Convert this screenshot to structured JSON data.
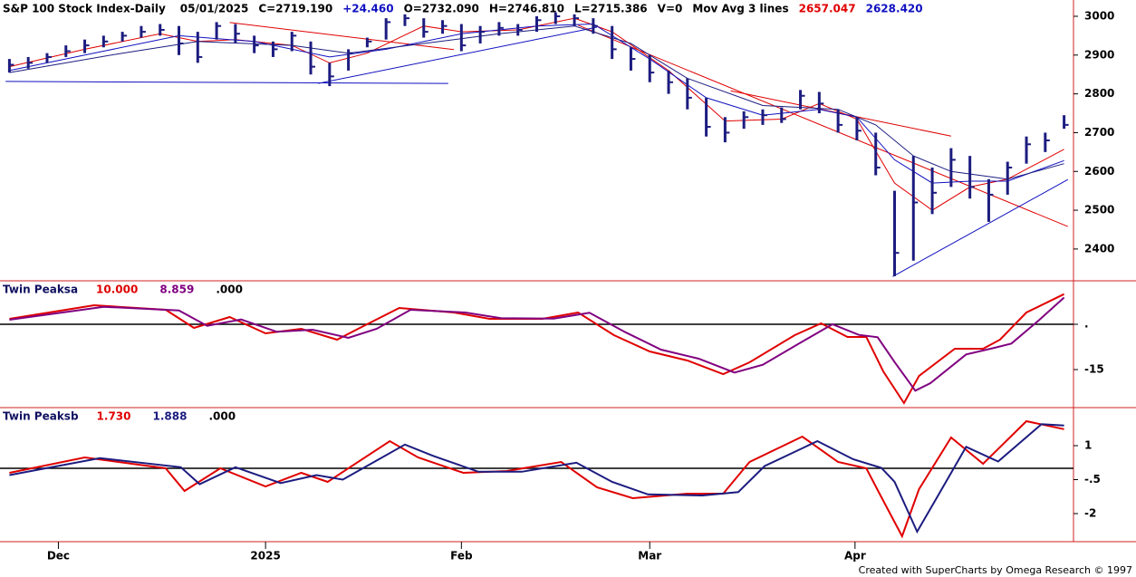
{
  "chart_data": [
    {
      "type": "ohlc",
      "title": "S&P 100 Stock Index-Daily",
      "header": [
        {
          "text": "05/01/2025",
          "color": "#000000"
        },
        {
          "text": "C=2719.190",
          "color": "#000000"
        },
        {
          "text": "+24.460",
          "color": "#1010c0"
        },
        {
          "text": "O=2732.090",
          "color": "#000000"
        },
        {
          "text": "H=2746.810",
          "color": "#000000"
        },
        {
          "text": "L=2715.386",
          "color": "#000000"
        },
        {
          "text": "V=0",
          "color": "#000000"
        },
        {
          "text": "Mov Avg 3 lines",
          "color": "#000000"
        },
        {
          "text": "2657.047",
          "color": "#e00000"
        },
        {
          "text": "2628.420",
          "color": "#1010c0"
        }
      ],
      "color": "#1c1c80",
      "xlim": [
        -0.5,
        56.5
      ],
      "ylim": [
        2318,
        3042
      ],
      "yticks": [
        2400,
        2500,
        2600,
        2700,
        2800,
        2900,
        3000
      ],
      "close": [
        2875,
        2880,
        2895,
        2910,
        2925,
        2935,
        2950,
        2960,
        2965,
        2930,
        2895,
        2975,
        2955,
        2925,
        2915,
        2950,
        2870,
        2845,
        2905,
        2935,
        2985,
        2995,
        2960,
        2975,
        2925,
        2960,
        2970,
        2965,
        2990,
        3000,
        2995,
        2975,
        2915,
        2890,
        2855,
        2830,
        2790,
        2715,
        2700,
        2740,
        2745,
        2735,
        2795,
        2775,
        2720,
        2705,
        2610,
        2390,
        2520,
        2545,
        2630,
        2560,
        2540,
        2610,
        2670,
        2680,
        2720
      ],
      "high": [
        2890,
        2895,
        2905,
        2925,
        2940,
        2950,
        2960,
        2975,
        2980,
        2975,
        2960,
        2985,
        2980,
        2950,
        2935,
        2960,
        2935,
        2880,
        2915,
        2945,
        2995,
        3005,
        2995,
        2990,
        2980,
        2975,
        2985,
        2980,
        3000,
        3010,
        3005,
        2995,
        2975,
        2920,
        2900,
        2860,
        2840,
        2790,
        2740,
        2755,
        2760,
        2765,
        2810,
        2805,
        2760,
        2740,
        2700,
        2550,
        2640,
        2610,
        2660,
        2640,
        2580,
        2625,
        2690,
        2700,
        2745
      ],
      "low": [
        2855,
        2865,
        2880,
        2895,
        2905,
        2920,
        2935,
        2945,
        2950,
        2900,
        2880,
        2940,
        2930,
        2905,
        2895,
        2910,
        2850,
        2820,
        2860,
        2920,
        2940,
        2975,
        2945,
        2955,
        2910,
        2930,
        2950,
        2950,
        2960,
        2980,
        2975,
        2955,
        2890,
        2860,
        2830,
        2800,
        2760,
        2690,
        2675,
        2710,
        2720,
        2725,
        2760,
        2750,
        2700,
        2680,
        2590,
        2330,
        2370,
        2490,
        2560,
        2530,
        2470,
        2540,
        2620,
        2650,
        2710
      ],
      "lines": [
        {
          "color": "#e00000",
          "x": [
            0,
            4,
            8,
            10,
            12,
            15,
            17,
            19,
            22,
            24,
            27,
            30,
            32,
            35,
            38,
            41,
            43,
            45,
            47,
            49,
            51,
            53,
            56
          ],
          "values": [
            2870,
            2915,
            2955,
            2935,
            2940,
            2925,
            2880,
            2905,
            2975,
            2960,
            2965,
            2995,
            2960,
            2860,
            2730,
            2735,
            2775,
            2735,
            2570,
            2500,
            2560,
            2580,
            2657
          ]
        },
        {
          "color": "#1010c0",
          "x": [
            0,
            5,
            9,
            13,
            17,
            20,
            24,
            28,
            31,
            34,
            37,
            40,
            43,
            45,
            47,
            49,
            51,
            53,
            56
          ],
          "values": [
            2860,
            2910,
            2950,
            2935,
            2895,
            2915,
            2955,
            2975,
            2980,
            2890,
            2790,
            2745,
            2760,
            2740,
            2630,
            2570,
            2575,
            2575,
            2628
          ]
        },
        {
          "color": "#1c1c80",
          "x": [
            0,
            6,
            10,
            15,
            18,
            22,
            26,
            30,
            33,
            36,
            40,
            44,
            46,
            48,
            50,
            53,
            56
          ],
          "values": [
            2855,
            2905,
            2935,
            2925,
            2905,
            2930,
            2955,
            2975,
            2930,
            2840,
            2770,
            2760,
            2720,
            2640,
            2600,
            2580,
            2620
          ]
        }
      ],
      "trendlines": [
        {
          "color": "#e00000",
          "x": [
            11.7,
            23.6
          ],
          "values": [
            2984,
            2914
          ]
        },
        {
          "color": "#e00000",
          "x": [
            30.2,
            56.2
          ],
          "values": [
            2977,
            2458
          ]
        },
        {
          "color": "#e00000",
          "x": [
            38.3,
            50
          ],
          "values": [
            2808,
            2691
          ]
        },
        {
          "color": "#1010c0",
          "x": [
            -0.2,
            23.3
          ],
          "values": [
            2832,
            2827
          ]
        },
        {
          "color": "#1010c0",
          "x": [
            16.4,
            31.2
          ],
          "values": [
            2827,
            2972
          ]
        },
        {
          "color": "#1010c0",
          "x": [
            46.9,
            56.2
          ],
          "values": [
            2329,
            2579
          ]
        }
      ]
    },
    {
      "type": "line",
      "title": "Twin Peaksa",
      "header": [
        {
          "text": "10.000",
          "color": "#e00000"
        },
        {
          "text": "8.859",
          "color": "#800080"
        },
        {
          "text": ".000",
          "color": "#000000"
        }
      ],
      "xlim": [
        -0.5,
        56.5
      ],
      "ylim": [
        -27.6,
        14.4
      ],
      "yticks": [
        {
          "value": 0,
          "label": "."
        },
        -15
      ],
      "reference_line": 0,
      "series": [
        {
          "color": "#e00000",
          "x": [
            0,
            4.5,
            8.3,
            9.8,
            11.7,
            13.6,
            15.5,
            17.4,
            18.8,
            20.7,
            23.6,
            25.5,
            28.3,
            30.2,
            32.1,
            34,
            36,
            37.9,
            39.3,
            41.7,
            43.1,
            44.5,
            45.5,
            46.4,
            47.5,
            48.3,
            50.2,
            51.7,
            52.6,
            54,
            56
          ],
          "values": [
            1.8,
            6.3,
            4.8,
            -1.2,
            2.4,
            -3,
            -1.5,
            -5.1,
            -0.6,
            5.4,
            3.9,
            1.8,
            1.8,
            3.9,
            -3.6,
            -9,
            -12,
            -16.5,
            -12.6,
            -3.6,
            0.3,
            -4.2,
            -4.2,
            -15.6,
            -26.1,
            -17.1,
            -8.1,
            -8.1,
            -5.1,
            3.9,
            10
          ]
        },
        {
          "color": "#800080",
          "x": [
            0,
            5,
            9,
            10.5,
            12.3,
            14.2,
            16.1,
            18,
            19.5,
            21.3,
            24.2,
            26.1,
            28.9,
            30.8,
            32.7,
            34.6,
            36.6,
            38.5,
            40,
            42.3,
            43.7,
            45.1,
            46.1,
            47,
            48.1,
            48.9,
            50.8,
            52.3,
            53.2,
            54.6,
            56
          ],
          "values": [
            1.5,
            5.8,
            4.6,
            -0.5,
            1.6,
            -2.5,
            -1.8,
            -4.5,
            -1.5,
            4.8,
            3.9,
            2,
            1.9,
            3.8,
            -2.6,
            -8.4,
            -11.4,
            -16,
            -13.4,
            -5,
            0,
            -3.5,
            -4.3,
            -12.5,
            -22,
            -19.5,
            -10,
            -7.8,
            -6.4,
            1,
            8.859
          ]
        }
      ]
    },
    {
      "type": "line",
      "title": "Twin Peaksb",
      "header": [
        {
          "text": "1.730",
          "color": "#e00000"
        },
        {
          "text": "1.888",
          "color": "#1c1c80"
        },
        {
          "text": ".000",
          "color": "#000000"
        }
      ],
      "xlim": [
        -0.5,
        56.5
      ],
      "ylim": [
        -3.24,
        2.68
      ],
      "yticks": [
        1,
        {
          "value": -0.5,
          "label": "-.5"
        },
        -2
      ],
      "reference_line": 0,
      "xticks": [
        {
          "value": 2.6,
          "label": "Dec"
        },
        {
          "value": 13.6,
          "label": "2025"
        },
        {
          "value": 24,
          "label": "Feb"
        },
        {
          "value": 34,
          "label": "Mar"
        },
        {
          "value": 44.9,
          "label": "Apr"
        }
      ],
      "series": [
        {
          "color": "#e00000",
          "x": [
            0,
            4,
            8.3,
            9.3,
            11.2,
            13.6,
            15.5,
            16.9,
            20.2,
            21.7,
            24.1,
            26.4,
            29.3,
            31.2,
            33.1,
            36,
            37.9,
            39.3,
            42.1,
            44,
            45.5,
            46.2,
            47.4,
            48.3,
            50,
            51.7,
            54,
            56
          ],
          "values": [
            -0.2,
            0.48,
            0,
            -1,
            0,
            -0.8,
            -0.2,
            -0.6,
            1.2,
            0.48,
            -0.2,
            -0.12,
            0.28,
            -0.84,
            -1.32,
            -1.12,
            -1.12,
            0.28,
            1.4,
            0.28,
            0,
            -1.12,
            -3,
            -0.92,
            1.36,
            0.2,
            2.08,
            1.73
          ]
        },
        {
          "color": "#1c1c80",
          "x": [
            0,
            4.8,
            9.1,
            10.1,
            12,
            14.4,
            16.3,
            17.7,
            21,
            22.5,
            24.9,
            27.2,
            30.1,
            32,
            33.9,
            36.8,
            38.7,
            40.1,
            42.9,
            44.8,
            46.3,
            47,
            48.2,
            49.1,
            50.8,
            52.5,
            54.8,
            56
          ],
          "values": [
            -0.3,
            0.45,
            0.05,
            -0.7,
            0.05,
            -0.65,
            -0.3,
            -0.5,
            1.05,
            0.55,
            -0.15,
            -0.15,
            0.25,
            -0.6,
            -1.15,
            -1.2,
            -1.05,
            0.1,
            1.2,
            0.4,
            0.02,
            -0.6,
            -2.8,
            -1.5,
            0.95,
            0.3,
            1.95,
            1.888
          ]
        }
      ]
    }
  ],
  "footer": "Created with SuperCharts by Omega Research © 1997"
}
